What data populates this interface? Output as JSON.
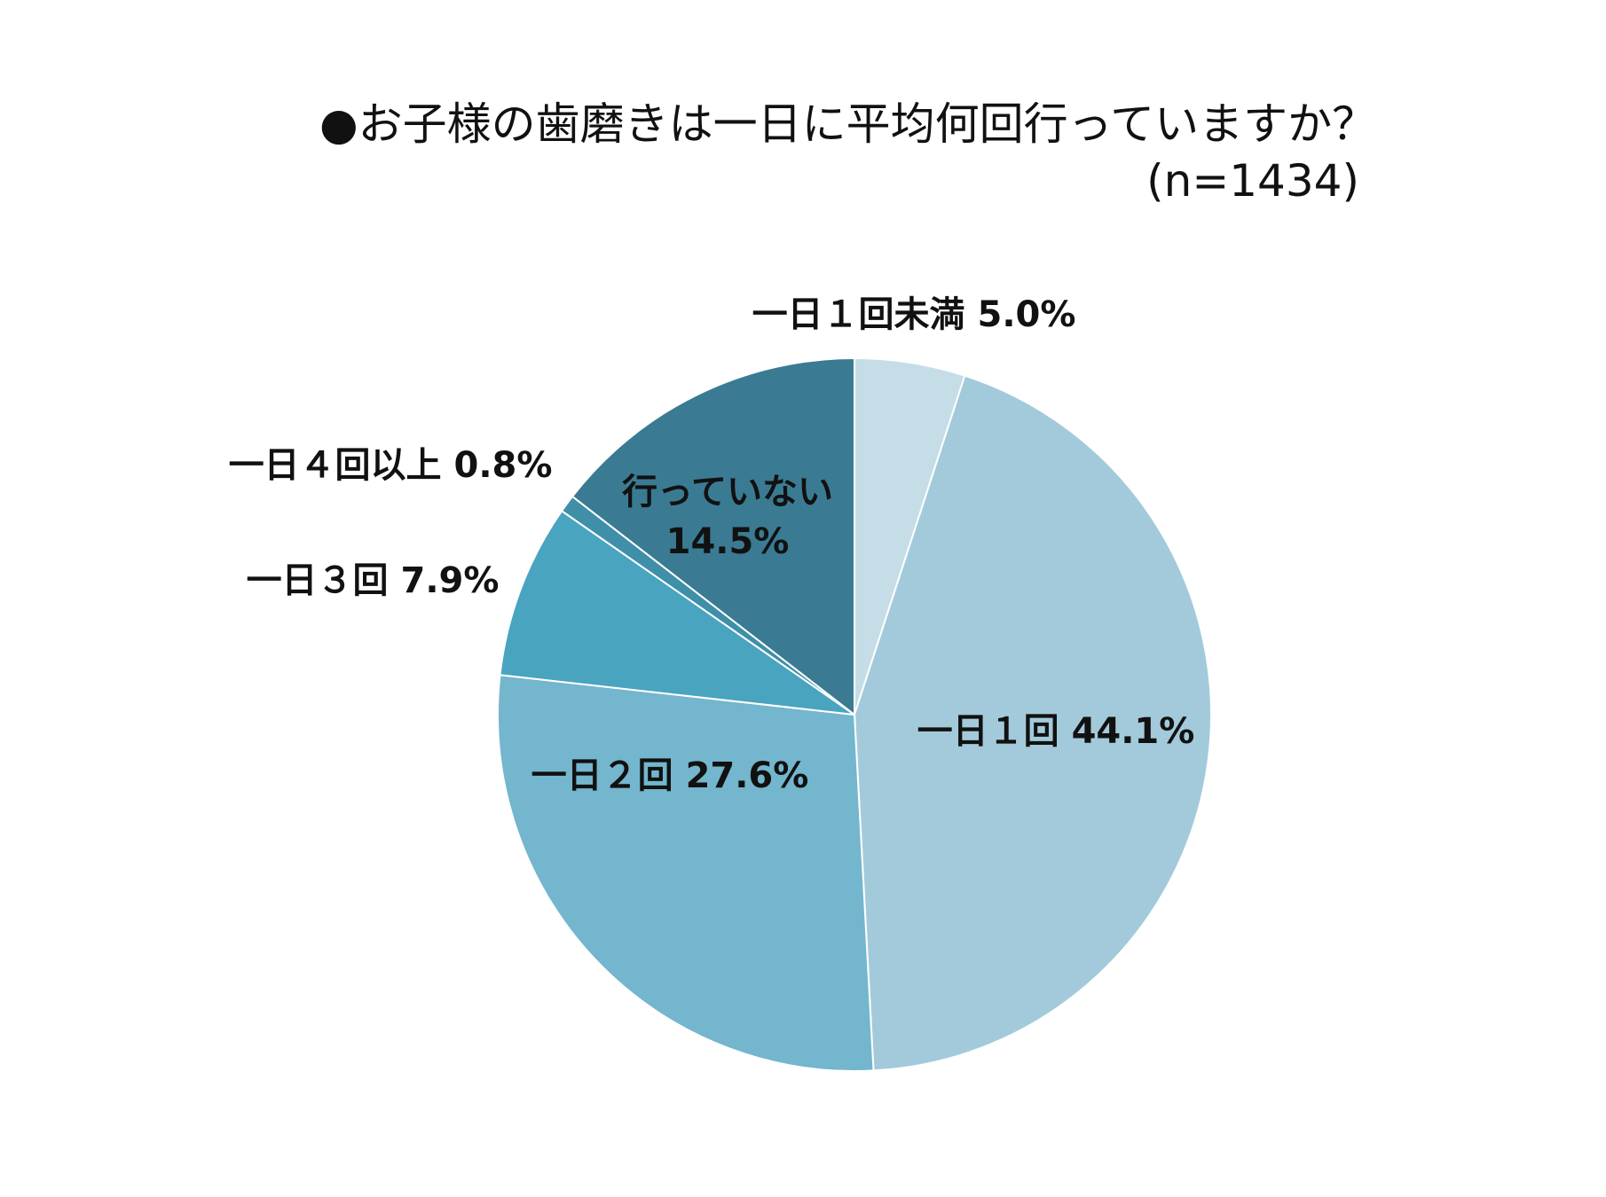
{
  "chart_data": {
    "type": "pie",
    "title": "●お子様の歯磨きは一日に平均何回行っていますか？",
    "subtitle": "(n=1434)",
    "unit": "%",
    "slices": [
      {
        "name": "一日１回未満",
        "value": 5.0,
        "value_label": "5.0%",
        "color": "#c5dde6"
      },
      {
        "name": "一日１回",
        "value": 44.1,
        "value_label": "44.1%",
        "color": "#a3cadb"
      },
      {
        "name": "一日２回",
        "value": 27.6,
        "value_label": "27.6%",
        "color": "#73b6ce"
      },
      {
        "name": "一日３回",
        "value": 7.9,
        "value_label": "7.9%",
        "color": "#49a4bf"
      },
      {
        "name": "一日４回以上",
        "value": 0.8,
        "value_label": "0.8%",
        "color": "#3f8fa8"
      },
      {
        "name": "行っていない",
        "value": 14.5,
        "value_label": "14.5%",
        "color": "#3a7b93"
      }
    ],
    "start_angle": "12 o'clock",
    "direction": "clockwise",
    "legend": "none"
  }
}
